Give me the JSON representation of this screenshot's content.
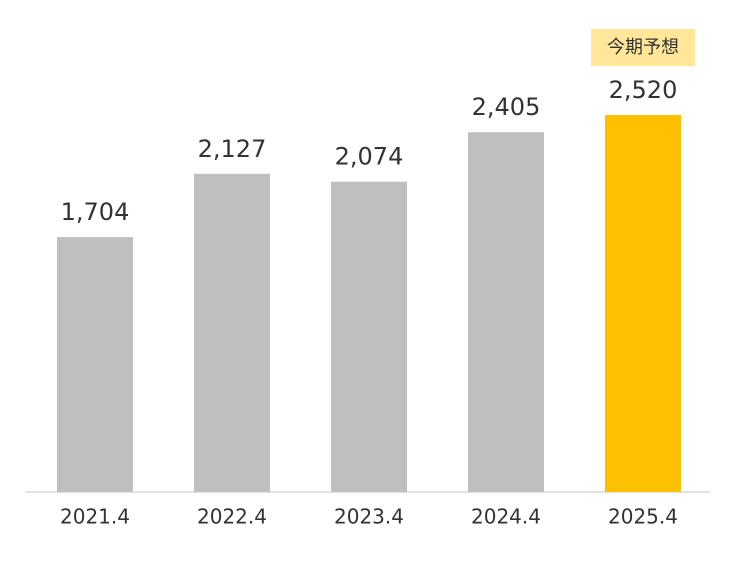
{
  "chart_data": {
    "type": "bar",
    "categories": [
      "2021.4",
      "2022.4",
      "2023.4",
      "2024.4",
      "2025.4"
    ],
    "values": [
      1704,
      2127,
      2074,
      2405,
      2520
    ],
    "value_labels": [
      "1,704",
      "2,127",
      "2,074",
      "2,405",
      "2,520"
    ],
    "colors": [
      "#bfbfbf",
      "#bfbfbf",
      "#bfbfbf",
      "#bfbfbf",
      "#ffc000"
    ],
    "annotation": "今期予想",
    "annotation_color": "#ffe699"
  }
}
